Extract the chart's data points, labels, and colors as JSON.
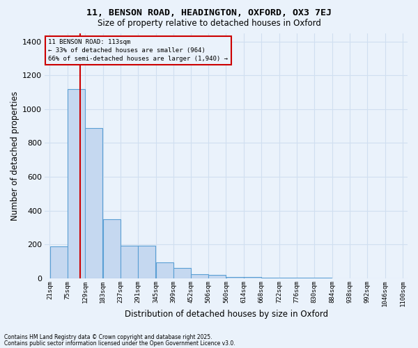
{
  "title_line1": "11, BENSON ROAD, HEADINGTON, OXFORD, OX3 7EJ",
  "title_line2": "Size of property relative to detached houses in Oxford",
  "xlabel": "Distribution of detached houses by size in Oxford",
  "ylabel": "Number of detached properties",
  "footnote_line1": "Contains HM Land Registry data © Crown copyright and database right 2025.",
  "footnote_line2": "Contains public sector information licensed under the Open Government Licence v3.0.",
  "bin_edges": [
    21,
    75,
    129,
    183,
    237,
    291,
    345,
    399,
    452,
    506,
    560,
    614,
    668,
    722,
    776,
    830,
    884,
    938,
    992,
    1046,
    1100
  ],
  "bin_labels": [
    "21sqm",
    "75sqm",
    "129sqm",
    "183sqm",
    "237sqm",
    "291sqm",
    "345sqm",
    "399sqm",
    "452sqm",
    "506sqm",
    "560sqm",
    "614sqm",
    "668sqm",
    "722sqm",
    "776sqm",
    "830sqm",
    "884sqm",
    "938sqm",
    "992sqm",
    "1046sqm",
    "1100sqm"
  ],
  "bar_heights": [
    190,
    1120,
    890,
    350,
    195,
    195,
    95,
    60,
    25,
    20,
    10,
    8,
    5,
    3,
    2,
    2,
    0,
    0,
    0,
    0
  ],
  "bar_color": "#c5d8f0",
  "bar_edge_color": "#5a9fd4",
  "background_color": "#eaf2fb",
  "grid_color": "#d0dff0",
  "property_size": 113,
  "vline_color": "#cc0000",
  "annotation_text_line1": "11 BENSON ROAD: 113sqm",
  "annotation_text_line2": "← 33% of detached houses are smaller (964)",
  "annotation_text_line3": "66% of semi-detached houses are larger (1,940) →",
  "annotation_box_color": "#cc0000",
  "ylim": [
    0,
    1450
  ],
  "yticks": [
    0,
    200,
    400,
    600,
    800,
    1000,
    1200,
    1400
  ],
  "figsize": [
    6.0,
    5.0
  ],
  "dpi": 100
}
